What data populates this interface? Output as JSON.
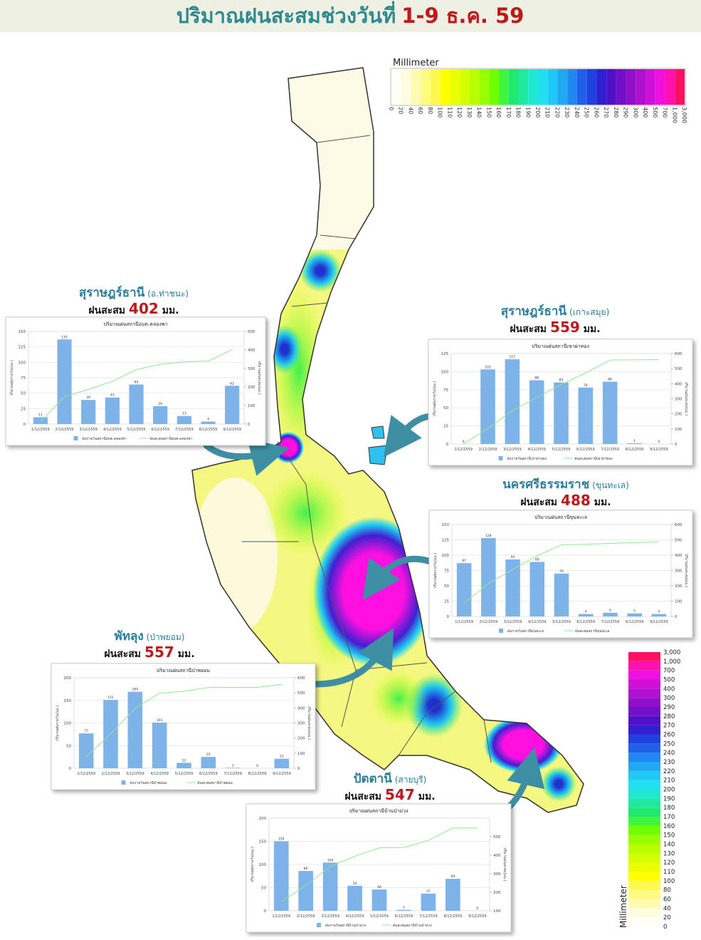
{
  "header": {
    "title": "ปริมาณฝนสะสมช่วงวันที่",
    "dates": "1-9 ธ.ค. 59"
  },
  "legend": {
    "title": "Millimeter",
    "labels": [
      "0",
      "20",
      "40",
      "60",
      "80",
      "100",
      "110",
      "120",
      "130",
      "140",
      "150",
      "160",
      "170",
      "180",
      "190",
      "200",
      "210",
      "220",
      "230",
      "240",
      "250",
      "260",
      "270",
      "280",
      "290",
      "300",
      "400",
      "500",
      "700",
      "1,000",
      "3,000"
    ],
    "colors": [
      "#fffff5",
      "#fffde0",
      "#fffbb0",
      "#fffa80",
      "#fff850",
      "#ffff00",
      "#eaff00",
      "#d4ff00",
      "#b8ff00",
      "#99ff00",
      "#70ff00",
      "#40f540",
      "#20e870",
      "#20e8a0",
      "#20e8d0",
      "#20e0f0",
      "#20c8f5",
      "#20a8f0",
      "#2088f0",
      "#2060e8",
      "#2040e0",
      "#3020d0",
      "#5010c8",
      "#7010c8",
      "#9010c8",
      "#b010d0",
      "#d010d8",
      "#f010e0",
      "#ff10b0",
      "#ff1060"
    ]
  },
  "chart_data": [
    {
      "type": "bar",
      "heading": {
        "province": "สุราษฎร์ธานี",
        "district": "(อ.ท่าชนะ)",
        "prefix": "ฝนสะสม",
        "total": 402,
        "unit": "มม."
      },
      "title": "ปริมาณฝนสถานีอบต.คลองพา",
      "ylabel": "ปริมาณฝนรายวัน(มม.)",
      "y2label": "ปริมาณฝนสะสม(มม.)",
      "categories": [
        "1/12/2559",
        "2/12/2559",
        "3/12/2559",
        "4/12/2559",
        "5/12/2559",
        "6/12/2559",
        "7/12/2559",
        "8/12/2559",
        "9/12/2559"
      ],
      "series": [
        {
          "name": "ฝนรายวันสถานีอบต.คลองพา",
          "type": "bar",
          "color": "#7db3e8",
          "values": [
            11,
            137,
            39,
            43,
            64,
            29,
            13,
            4,
            62
          ]
        },
        {
          "name": "ฝนสะสมสถานีอบต.คลองพา",
          "type": "line",
          "axis": "y2",
          "color": "#90e890",
          "values": [
            11,
            148,
            187,
            230,
            294,
            323,
            336,
            340,
            402
          ]
        }
      ],
      "ylim": [
        0,
        150
      ],
      "yticks": [
        0,
        25,
        50,
        75,
        100,
        125,
        150
      ],
      "y2lim": [
        0,
        500
      ],
      "y2ticks": [
        0,
        100,
        200,
        300,
        400,
        500
      ],
      "grid": true
    },
    {
      "type": "bar",
      "heading": {
        "province": "สุราษฎร์ธานี",
        "district": "(เกาะสมุย)",
        "prefix": "ฝนสะสม",
        "total": 559,
        "unit": "มม."
      },
      "title": "ปริมาณฝนสถานีเขาผ่าทอง",
      "ylabel": "ปริมาณฝนรายวัน(มม.)",
      "y2label": "ปริมาณฝนสะสม(มม.)",
      "categories": [
        "1/12/2559",
        "2/12/2559",
        "3/12/2559",
        "4/12/2559",
        "5/12/2559",
        "6/12/2559",
        "7/12/2559",
        "8/12/2559",
        "9/12/2559"
      ],
      "series": [
        {
          "name": "ฝนรายวันสถานีเขาผ่าทอง",
          "type": "bar",
          "color": "#7db3e8",
          "values": [
            0,
            103,
            117,
            88,
            85,
            78,
            86,
            1,
            0
          ]
        },
        {
          "name": "ฝนสะสมสถานีเขาผ่าทอง",
          "type": "line",
          "axis": "y2",
          "color": "#90e890",
          "values": [
            0,
            103,
            220,
            308,
            393,
            471,
            557,
            558,
            559
          ]
        }
      ],
      "ylim": [
        0,
        125
      ],
      "yticks": [
        0,
        25,
        50,
        75,
        100,
        125
      ],
      "y2lim": [
        0,
        600
      ],
      "y2ticks": [
        0,
        100,
        200,
        300,
        400,
        500,
        600
      ],
      "grid": true
    },
    {
      "type": "bar",
      "heading": {
        "province": "นครศรีธรรมราช",
        "district": "(ขุนทะเล)",
        "prefix": "ฝนสะสม",
        "total": 488,
        "unit": "มม."
      },
      "title": "ปริมาณฝนสถานีขุนทะเล",
      "ylabel": "ปริมาณฝนรายวัน(มม.)",
      "y2label": "ปริมาณฝนสะสม(มม.)",
      "categories": [
        "1/12/2559",
        "2/12/2559",
        "3/12/2559",
        "4/12/2559",
        "5/12/2559",
        "6/12/2559",
        "7/12/2559",
        "8/12/2559",
        "9/12/2559"
      ],
      "series": [
        {
          "name": "ฝนรายวันสถานีขุนทะเล",
          "type": "bar",
          "color": "#7db3e8",
          "values": [
            87,
            128,
            93,
            89,
            70,
            4,
            6,
            5,
            4
          ]
        },
        {
          "name": "ฝนสะสมสถานีขุนทะเล",
          "type": "line",
          "axis": "y2",
          "color": "#90e890",
          "values": [
            87,
            215,
            308,
            397,
            467,
            471,
            477,
            482,
            488
          ]
        }
      ],
      "ylim": [
        0,
        150
      ],
      "yticks": [
        0,
        25,
        50,
        75,
        100,
        125,
        150
      ],
      "y2lim": [
        0,
        600
      ],
      "y2ticks": [
        0,
        100,
        200,
        300,
        400,
        500,
        600
      ],
      "grid": true
    },
    {
      "type": "bar",
      "heading": {
        "province": "พัทลุง",
        "district": "(ป่าพยอม)",
        "prefix": "ฝนสะสม",
        "total": 557,
        "unit": "มม."
      },
      "title": "ปริมาณฝนสถานีป่าพยอม",
      "ylabel": "ปริมาณฝนรายวัน(มม.)",
      "y2label": "ปริมาณฝนสะสม(มม.)",
      "categories": [
        "1/12/2559",
        "2/12/2559",
        "3/12/2559",
        "4/12/2559",
        "5/12/2559",
        "6/12/2559",
        "7/12/2559",
        "8/12/2559",
        "9/12/2559"
      ],
      "series": [
        {
          "name": "ฝนรายวันสถานีป่าพยอม",
          "type": "bar",
          "color": "#7db3e8",
          "values": [
            77,
            151,
            169,
            101,
            12,
            25,
            1,
            0,
            21
          ]
        },
        {
          "name": "ฝนสะสมสถานีป่าพยอม",
          "type": "line",
          "axis": "y2",
          "color": "#90e890",
          "values": [
            77,
            228,
            397,
            498,
            510,
            535,
            536,
            536,
            557
          ]
        }
      ],
      "ylim": [
        0,
        200
      ],
      "yticks": [
        0,
        50,
        100,
        150,
        200
      ],
      "y2lim": [
        0,
        600
      ],
      "y2ticks": [
        0,
        100,
        200,
        300,
        400,
        500,
        600
      ],
      "grid": true
    },
    {
      "type": "bar",
      "heading": {
        "province": "ปัตตานี",
        "district": "(สายบุรี)",
        "prefix": "ฝนสะสม",
        "total": 547,
        "unit": "มม."
      },
      "title": "ปริมาณฝนสถานีบ้านป่าม่วง",
      "ylabel": "ปริมาณฝนรายวัน(มม.)",
      "y2label": "ปริมาณฝนสะสม(มม.)",
      "categories": [
        "1/12/2559",
        "2/12/2559",
        "3/12/2559",
        "4/12/2559",
        "5/12/2559",
        "6/12/2559",
        "7/12/2559",
        "8/12/2559",
        "9/12/2559"
      ],
      "series": [
        {
          "name": "ฝนรายวันสถานีบ้านป่าม่วง",
          "type": "bar",
          "color": "#7db3e8",
          "values": [
            150,
            86,
            104,
            54,
            46,
            2,
            37,
            69,
            0
          ]
        },
        {
          "name": "ฝนสะสมสถานีบ้านป่าม่วง",
          "type": "line",
          "axis": "y2",
          "color": "#90e890",
          "values": [
            150,
            236,
            340,
            394,
            440,
            442,
            479,
            547,
            547
          ]
        }
      ],
      "ylim": [
        0,
        200
      ],
      "yticks": [
        0,
        50,
        100,
        150,
        200
      ],
      "y2lim": [
        100,
        600
      ],
      "y2ticks": [
        100,
        200,
        300,
        400,
        500
      ],
      "grid": true
    }
  ]
}
